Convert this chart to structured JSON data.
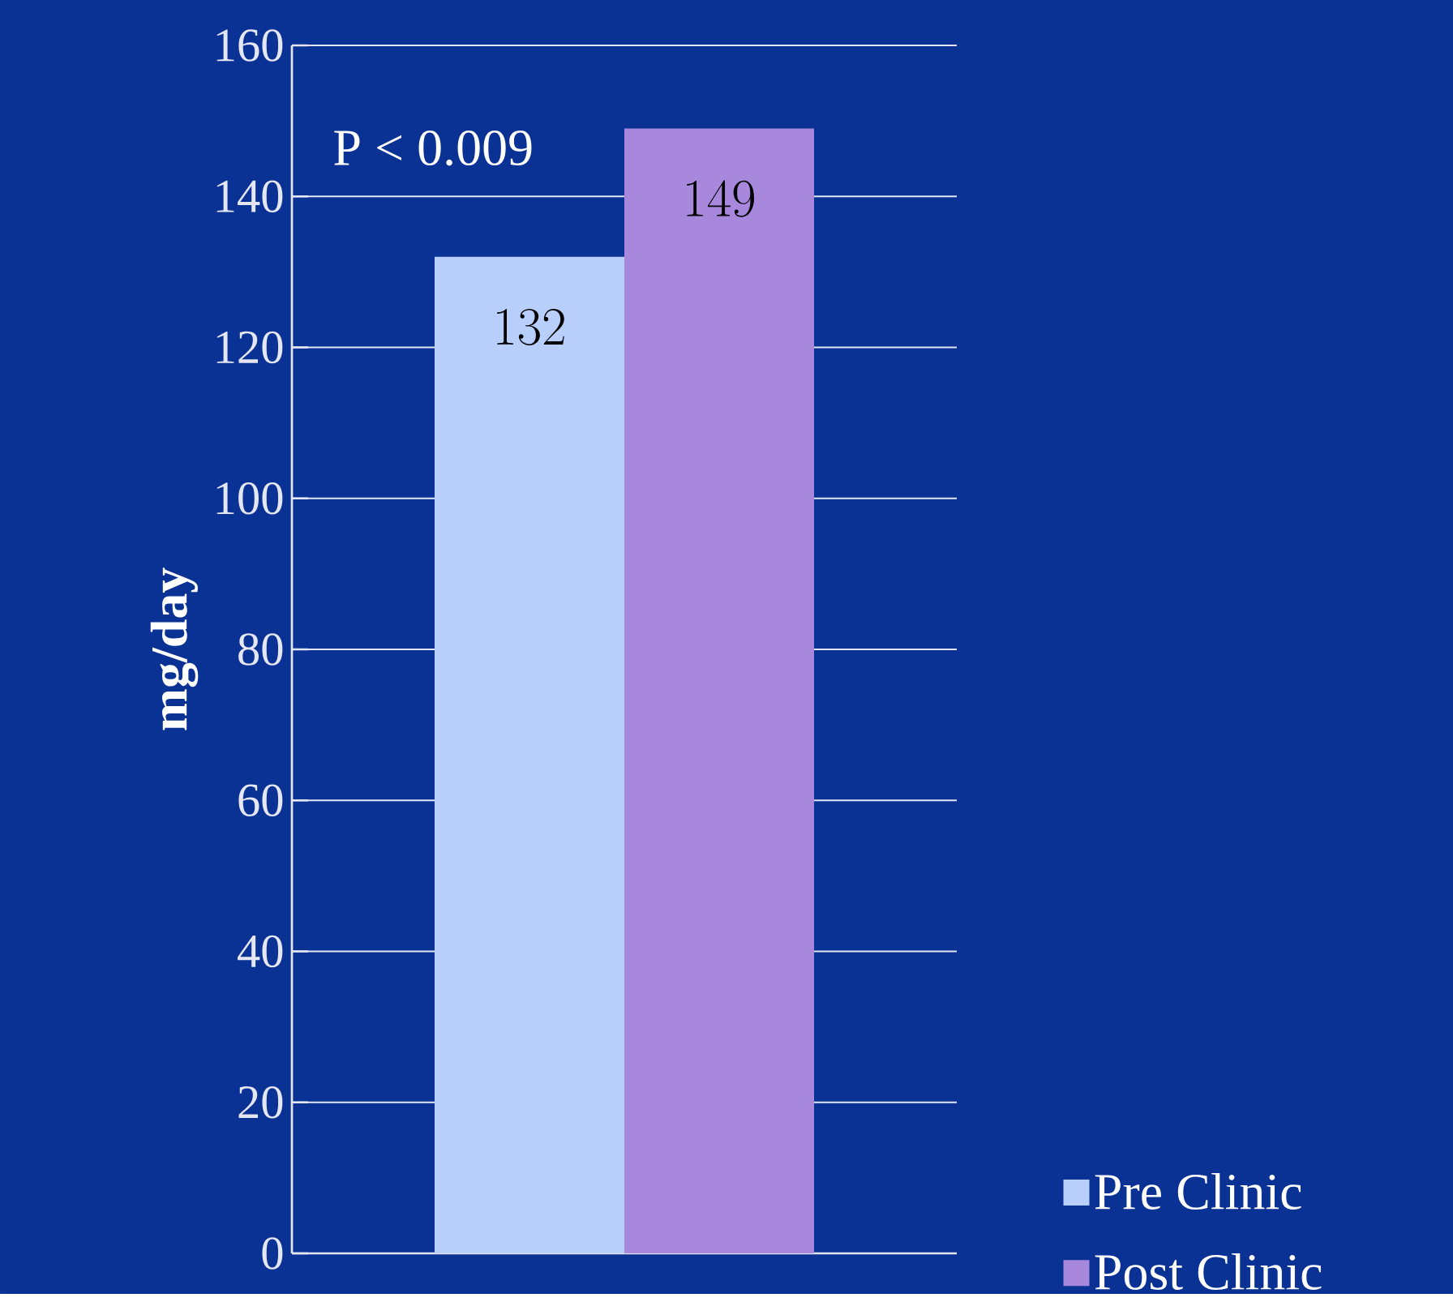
{
  "chart_data": {
    "type": "bar",
    "categories": [
      null
    ],
    "ylabel": "mg/day",
    "series": [
      {
        "name": "Pre Clinic",
        "color": "#b9cffb",
        "values": [
          132
        ]
      },
      {
        "name": "Post Clinic",
        "color": "#a888dd",
        "values": [
          149
        ]
      }
    ],
    "ylim": [
      0,
      160
    ],
    "yticks": [
      0,
      20,
      40,
      60,
      80,
      100,
      120,
      140,
      160
    ],
    "grid": "y",
    "legend": "bottom right",
    "data_labels": true,
    "annotations": [
      "P < 0.009"
    ]
  }
}
